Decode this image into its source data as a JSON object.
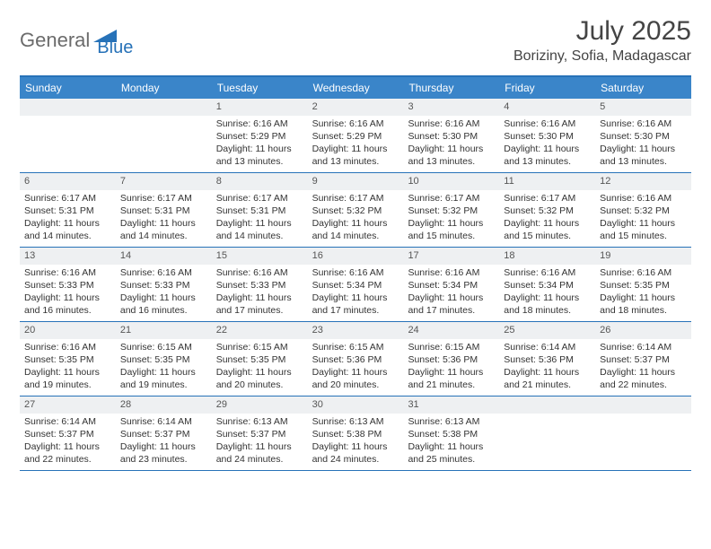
{
  "brand": {
    "part1": "General",
    "part2": "Blue"
  },
  "title": "July 2025",
  "location": "Boriziny, Sofia, Madagascar",
  "colors": {
    "accent": "#2772b8",
    "header_bg": "#3a85c9",
    "daynum_bg": "#eef0f2",
    "text": "#333333",
    "logo_gray": "#6b6b6b"
  },
  "weekdays": [
    "Sunday",
    "Monday",
    "Tuesday",
    "Wednesday",
    "Thursday",
    "Friday",
    "Saturday"
  ],
  "weeks": [
    [
      {
        "n": "",
        "sr": "",
        "ss": "",
        "dl": ""
      },
      {
        "n": "",
        "sr": "",
        "ss": "",
        "dl": ""
      },
      {
        "n": "1",
        "sr": "6:16 AM",
        "ss": "5:29 PM",
        "dl": "11 hours and 13 minutes."
      },
      {
        "n": "2",
        "sr": "6:16 AM",
        "ss": "5:29 PM",
        "dl": "11 hours and 13 minutes."
      },
      {
        "n": "3",
        "sr": "6:16 AM",
        "ss": "5:30 PM",
        "dl": "11 hours and 13 minutes."
      },
      {
        "n": "4",
        "sr": "6:16 AM",
        "ss": "5:30 PM",
        "dl": "11 hours and 13 minutes."
      },
      {
        "n": "5",
        "sr": "6:16 AM",
        "ss": "5:30 PM",
        "dl": "11 hours and 13 minutes."
      }
    ],
    [
      {
        "n": "6",
        "sr": "6:17 AM",
        "ss": "5:31 PM",
        "dl": "11 hours and 14 minutes."
      },
      {
        "n": "7",
        "sr": "6:17 AM",
        "ss": "5:31 PM",
        "dl": "11 hours and 14 minutes."
      },
      {
        "n": "8",
        "sr": "6:17 AM",
        "ss": "5:31 PM",
        "dl": "11 hours and 14 minutes."
      },
      {
        "n": "9",
        "sr": "6:17 AM",
        "ss": "5:32 PM",
        "dl": "11 hours and 14 minutes."
      },
      {
        "n": "10",
        "sr": "6:17 AM",
        "ss": "5:32 PM",
        "dl": "11 hours and 15 minutes."
      },
      {
        "n": "11",
        "sr": "6:17 AM",
        "ss": "5:32 PM",
        "dl": "11 hours and 15 minutes."
      },
      {
        "n": "12",
        "sr": "6:16 AM",
        "ss": "5:32 PM",
        "dl": "11 hours and 15 minutes."
      }
    ],
    [
      {
        "n": "13",
        "sr": "6:16 AM",
        "ss": "5:33 PM",
        "dl": "11 hours and 16 minutes."
      },
      {
        "n": "14",
        "sr": "6:16 AM",
        "ss": "5:33 PM",
        "dl": "11 hours and 16 minutes."
      },
      {
        "n": "15",
        "sr": "6:16 AM",
        "ss": "5:33 PM",
        "dl": "11 hours and 17 minutes."
      },
      {
        "n": "16",
        "sr": "6:16 AM",
        "ss": "5:34 PM",
        "dl": "11 hours and 17 minutes."
      },
      {
        "n": "17",
        "sr": "6:16 AM",
        "ss": "5:34 PM",
        "dl": "11 hours and 17 minutes."
      },
      {
        "n": "18",
        "sr": "6:16 AM",
        "ss": "5:34 PM",
        "dl": "11 hours and 18 minutes."
      },
      {
        "n": "19",
        "sr": "6:16 AM",
        "ss": "5:35 PM",
        "dl": "11 hours and 18 minutes."
      }
    ],
    [
      {
        "n": "20",
        "sr": "6:16 AM",
        "ss": "5:35 PM",
        "dl": "11 hours and 19 minutes."
      },
      {
        "n": "21",
        "sr": "6:15 AM",
        "ss": "5:35 PM",
        "dl": "11 hours and 19 minutes."
      },
      {
        "n": "22",
        "sr": "6:15 AM",
        "ss": "5:35 PM",
        "dl": "11 hours and 20 minutes."
      },
      {
        "n": "23",
        "sr": "6:15 AM",
        "ss": "5:36 PM",
        "dl": "11 hours and 20 minutes."
      },
      {
        "n": "24",
        "sr": "6:15 AM",
        "ss": "5:36 PM",
        "dl": "11 hours and 21 minutes."
      },
      {
        "n": "25",
        "sr": "6:14 AM",
        "ss": "5:36 PM",
        "dl": "11 hours and 21 minutes."
      },
      {
        "n": "26",
        "sr": "6:14 AM",
        "ss": "5:37 PM",
        "dl": "11 hours and 22 minutes."
      }
    ],
    [
      {
        "n": "27",
        "sr": "6:14 AM",
        "ss": "5:37 PM",
        "dl": "11 hours and 22 minutes."
      },
      {
        "n": "28",
        "sr": "6:14 AM",
        "ss": "5:37 PM",
        "dl": "11 hours and 23 minutes."
      },
      {
        "n": "29",
        "sr": "6:13 AM",
        "ss": "5:37 PM",
        "dl": "11 hours and 24 minutes."
      },
      {
        "n": "30",
        "sr": "6:13 AM",
        "ss": "5:38 PM",
        "dl": "11 hours and 24 minutes."
      },
      {
        "n": "31",
        "sr": "6:13 AM",
        "ss": "5:38 PM",
        "dl": "11 hours and 25 minutes."
      },
      {
        "n": "",
        "sr": "",
        "ss": "",
        "dl": ""
      },
      {
        "n": "",
        "sr": "",
        "ss": "",
        "dl": ""
      }
    ]
  ],
  "labels": {
    "sunrise": "Sunrise: ",
    "sunset": "Sunset: ",
    "daylight": "Daylight: "
  }
}
